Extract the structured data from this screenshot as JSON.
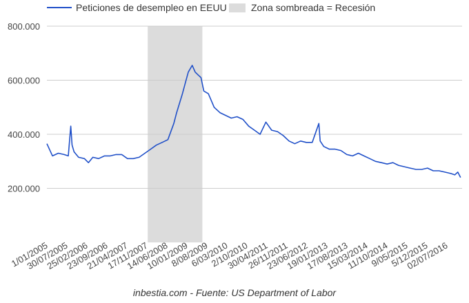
{
  "legend": {
    "series_label": "Peticiones de desempleo en EEUU",
    "recession_label": "Zona sombreada = Recesión"
  },
  "footer": {
    "source": "inbestia.com - Fuente: US Department of Labor"
  },
  "colors": {
    "series": "#1f4fc8",
    "recession": "#dcdcdc",
    "grid": "#cccccc",
    "text": "#444444"
  },
  "chart_data": {
    "type": "line",
    "title": "",
    "xlabel": "",
    "ylabel": "",
    "ylim": [
      0,
      800000
    ],
    "yticks": [
      200000,
      400000,
      600000,
      800000
    ],
    "ytick_labels": [
      "200.000",
      "400.000",
      "600.000",
      "800.000"
    ],
    "xtick_labels": [
      "1/01/2005",
      "30/07/2005",
      "25/02/2006",
      "23/09/2006",
      "21/04/2007",
      "17/11/2007",
      "14/06/2008",
      "10/01/2009",
      "8/08/2009",
      "6/03/2010",
      "2/10/2010",
      "30/04/2011",
      "26/11/2011",
      "23/06/2012",
      "19/01/2013",
      "17/08/2013",
      "15/03/2014",
      "11/10/2014",
      "9/05/2015",
      "5/12/2015",
      "02/07/2016"
    ],
    "recession": [
      "2007-12-01",
      "2009-06-30"
    ],
    "grid": true,
    "legend_position": "top",
    "series": [
      {
        "name": "Peticiones de desempleo en EEUU",
        "points": [
          [
            "2005-01-01",
            365000
          ],
          [
            "2005-03-01",
            320000
          ],
          [
            "2005-05-01",
            330000
          ],
          [
            "2005-07-01",
            325000
          ],
          [
            "2005-08-15",
            320000
          ],
          [
            "2005-09-10",
            430000
          ],
          [
            "2005-09-24",
            360000
          ],
          [
            "2005-10-15",
            335000
          ],
          [
            "2005-12-01",
            315000
          ],
          [
            "2006-02-01",
            310000
          ],
          [
            "2006-03-15",
            295000
          ],
          [
            "2006-05-01",
            315000
          ],
          [
            "2006-07-01",
            310000
          ],
          [
            "2006-09-01",
            320000
          ],
          [
            "2006-11-01",
            320000
          ],
          [
            "2007-01-01",
            325000
          ],
          [
            "2007-03-01",
            325000
          ],
          [
            "2007-05-01",
            310000
          ],
          [
            "2007-07-01",
            310000
          ],
          [
            "2007-09-01",
            315000
          ],
          [
            "2007-11-01",
            330000
          ],
          [
            "2008-01-01",
            345000
          ],
          [
            "2008-03-01",
            360000
          ],
          [
            "2008-05-01",
            370000
          ],
          [
            "2008-07-01",
            380000
          ],
          [
            "2008-09-01",
            440000
          ],
          [
            "2008-10-01",
            480000
          ],
          [
            "2008-11-01",
            515000
          ],
          [
            "2008-12-01",
            550000
          ],
          [
            "2009-01-01",
            590000
          ],
          [
            "2009-02-01",
            630000
          ],
          [
            "2009-03-15",
            655000
          ],
          [
            "2009-04-15",
            630000
          ],
          [
            "2009-05-15",
            620000
          ],
          [
            "2009-06-15",
            610000
          ],
          [
            "2009-07-15",
            560000
          ],
          [
            "2009-09-01",
            550000
          ],
          [
            "2009-11-01",
            500000
          ],
          [
            "2010-01-01",
            480000
          ],
          [
            "2010-03-01",
            470000
          ],
          [
            "2010-05-01",
            460000
          ],
          [
            "2010-07-01",
            465000
          ],
          [
            "2010-09-01",
            455000
          ],
          [
            "2010-11-01",
            430000
          ],
          [
            "2011-01-01",
            415000
          ],
          [
            "2011-03-01",
            400000
          ],
          [
            "2011-05-01",
            445000
          ],
          [
            "2011-07-01",
            415000
          ],
          [
            "2011-09-01",
            410000
          ],
          [
            "2011-11-01",
            395000
          ],
          [
            "2012-01-01",
            375000
          ],
          [
            "2012-03-01",
            365000
          ],
          [
            "2012-05-01",
            375000
          ],
          [
            "2012-07-01",
            370000
          ],
          [
            "2012-09-01",
            370000
          ],
          [
            "2012-11-10",
            440000
          ],
          [
            "2012-11-24",
            375000
          ],
          [
            "2013-01-01",
            355000
          ],
          [
            "2013-03-01",
            345000
          ],
          [
            "2013-05-01",
            345000
          ],
          [
            "2013-07-01",
            340000
          ],
          [
            "2013-09-01",
            325000
          ],
          [
            "2013-11-01",
            320000
          ],
          [
            "2014-01-01",
            330000
          ],
          [
            "2014-03-01",
            320000
          ],
          [
            "2014-05-01",
            310000
          ],
          [
            "2014-07-01",
            300000
          ],
          [
            "2014-09-01",
            295000
          ],
          [
            "2014-11-01",
            290000
          ],
          [
            "2015-01-01",
            295000
          ],
          [
            "2015-03-01",
            285000
          ],
          [
            "2015-05-01",
            280000
          ],
          [
            "2015-07-01",
            275000
          ],
          [
            "2015-09-01",
            270000
          ],
          [
            "2015-11-01",
            270000
          ],
          [
            "2016-01-01",
            275000
          ],
          [
            "2016-03-01",
            265000
          ],
          [
            "2016-05-01",
            265000
          ],
          [
            "2016-07-01",
            260000
          ],
          [
            "2016-09-01",
            255000
          ],
          [
            "2016-10-15",
            250000
          ],
          [
            "2016-11-15",
            260000
          ],
          [
            "2016-12-15",
            240000
          ]
        ]
      }
    ]
  }
}
